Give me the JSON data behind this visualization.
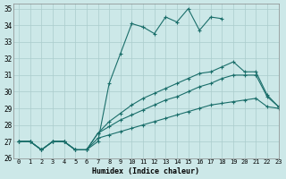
{
  "xlabel": "Humidex (Indice chaleur)",
  "ylabel": "",
  "xlim": [
    -0.5,
    23
  ],
  "ylim": [
    26,
    35.3
  ],
  "yticks": [
    26,
    27,
    28,
    29,
    30,
    31,
    32,
    33,
    34,
    35
  ],
  "xticks": [
    0,
    1,
    2,
    3,
    4,
    5,
    6,
    7,
    8,
    9,
    10,
    11,
    12,
    13,
    14,
    15,
    16,
    17,
    18,
    19,
    20,
    21,
    22,
    23
  ],
  "background_color": "#cce8e8",
  "grid_color": "#aacccc",
  "line_color": "#1a6e6a",
  "lines": [
    {
      "x": [
        0,
        1,
        2,
        3,
        4,
        5,
        6,
        7,
        8,
        9,
        10,
        11,
        12,
        13,
        14,
        15,
        16,
        17,
        18
      ],
      "y": [
        27.0,
        27.0,
        26.5,
        27.0,
        27.0,
        26.5,
        26.5,
        27.0,
        30.5,
        32.3,
        34.1,
        33.9,
        33.5,
        34.5,
        34.2,
        35.0,
        33.7,
        34.5,
        34.4
      ]
    },
    {
      "x": [
        0,
        1,
        2,
        3,
        4,
        5,
        6,
        7,
        8,
        9,
        10,
        11,
        12,
        13,
        14,
        15,
        16,
        17,
        18,
        19,
        20,
        21,
        22,
        23
      ],
      "y": [
        27.0,
        27.0,
        26.5,
        27.0,
        27.0,
        26.5,
        26.5,
        27.5,
        28.2,
        28.7,
        29.2,
        29.6,
        29.9,
        30.2,
        30.5,
        30.8,
        31.1,
        31.2,
        31.5,
        31.8,
        31.2,
        31.2,
        29.8,
        29.1
      ]
    },
    {
      "x": [
        0,
        1,
        2,
        3,
        4,
        5,
        6,
        7,
        8,
        9,
        10,
        11,
        12,
        13,
        14,
        15,
        16,
        17,
        18,
        19,
        20,
        21,
        22,
        23
      ],
      "y": [
        27.0,
        27.0,
        26.5,
        27.0,
        27.0,
        26.5,
        26.5,
        27.5,
        27.9,
        28.3,
        28.6,
        28.9,
        29.2,
        29.5,
        29.7,
        30.0,
        30.3,
        30.5,
        30.8,
        31.0,
        31.0,
        31.0,
        29.7,
        29.1
      ]
    },
    {
      "x": [
        0,
        1,
        2,
        3,
        4,
        5,
        6,
        7,
        8,
        9,
        10,
        11,
        12,
        13,
        14,
        15,
        16,
        17,
        18,
        19,
        20,
        21,
        22,
        23
      ],
      "y": [
        27.0,
        27.0,
        26.5,
        27.0,
        27.0,
        26.5,
        26.5,
        27.2,
        27.4,
        27.6,
        27.8,
        28.0,
        28.2,
        28.4,
        28.6,
        28.8,
        29.0,
        29.2,
        29.3,
        29.4,
        29.5,
        29.6,
        29.1,
        29.0
      ]
    }
  ],
  "marker": "+",
  "markersize": 3,
  "linewidth": 0.8
}
